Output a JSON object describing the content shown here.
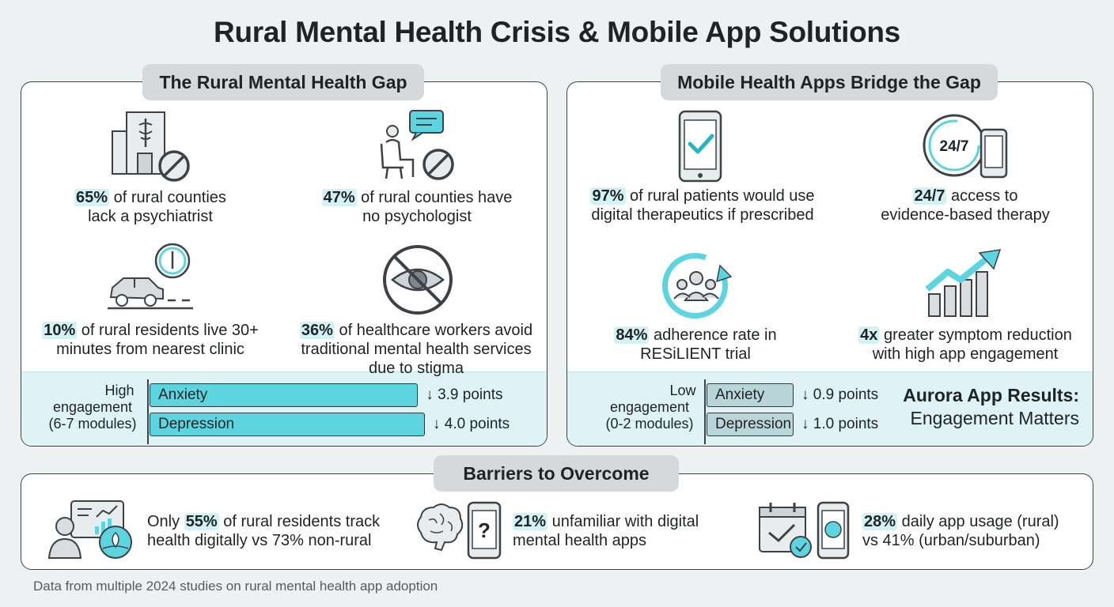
{
  "title": "Rural Mental Health Crisis & Mobile App Solutions",
  "gap_panel": {
    "heading": "The Rural Mental Health Gap",
    "stats": [
      {
        "value": "65%",
        "text_line1": " of rural counties",
        "text_line2": "lack a psychiatrist",
        "icon": "hospital-no-psychiatrist-icon"
      },
      {
        "value": "47%",
        "text_line1": " of rural counties have",
        "text_line2": "no psychologist",
        "icon": "therapist-chair-no-icon"
      },
      {
        "value": "10%",
        "text_line1": " of rural residents live 30+",
        "text_line2": "minutes from nearest clinic",
        "icon": "car-clock-icon"
      },
      {
        "value": "36%",
        "text_line1": " of healthcare workers avoid",
        "text_line2": "traditional mental health services",
        "text_line3": "due to stigma",
        "icon": "eye-crossed-stigma-icon"
      }
    ],
    "engagement": {
      "label_line1": "High",
      "label_line2": "engagement",
      "label_line3": "(6-7 modules)",
      "bars": [
        {
          "label": "Anxiety",
          "change": "↓ 3.9 points",
          "reduction": 3.9
        },
        {
          "label": "Depression",
          "change": "↓ 4.0 points",
          "reduction": 4.0
        }
      ]
    }
  },
  "apps_panel": {
    "heading": "Mobile Health Apps Bridge the Gap",
    "stats": [
      {
        "value": "97%",
        "text_line1": " of rural patients would use",
        "text_line2": "digital therapeutics if prescribed",
        "icon": "phone-check-icon"
      },
      {
        "value": "24/7",
        "text_line1": " access to",
        "text_line2": "evidence-based therapy",
        "icon": "clock-24-7-phone-icon"
      },
      {
        "value": "84%",
        "text_line1": " adherence rate in",
        "text_line2": "RESiLIENT trial",
        "icon": "group-cycle-icon"
      },
      {
        "value": "4x",
        "text_line1": " greater symptom reduction",
        "text_line2": "with high app engagement",
        "icon": "growth-chart-arrow-icon"
      }
    ],
    "engagement": {
      "label_line1": "Low",
      "label_line2": "engagement",
      "label_line3": "(0-2 modules)",
      "bars": [
        {
          "label": "Anxiety",
          "change": "↓ 0.9 points",
          "reduction": 0.9
        },
        {
          "label": "Depression",
          "change": "↓ 1.0 points",
          "reduction": 1.0
        }
      ]
    },
    "results_title": "Aurora App Results:",
    "results_subtitle": "Engagement Matters"
  },
  "barriers_panel": {
    "heading": "Barriers to Overcome",
    "items": [
      {
        "prefix": "Only ",
        "value": "55%",
        "text_line1": " of rural residents track",
        "text_line2": "health digitally vs 73% non-rural",
        "icon": "person-dashboard-icon"
      },
      {
        "prefix": "",
        "value": "21%",
        "text_line1": " unfamiliar with digital",
        "text_line2": "mental health apps",
        "icon": "brain-phone-question-icon"
      },
      {
        "prefix": "",
        "value": "28%",
        "text_line1": " daily app usage (rural)",
        "text_line2": "vs 41% (urban/suburban)",
        "icon": "calendar-phone-icon"
      }
    ]
  },
  "footnote": "Data from multiple 2024 studies on rural mental health app adoption",
  "colors": {
    "accent": "#5dd5e0",
    "accent_light": "#d4f2f6",
    "muted_bar": "#b9d5da",
    "outline": "#3c4247"
  }
}
